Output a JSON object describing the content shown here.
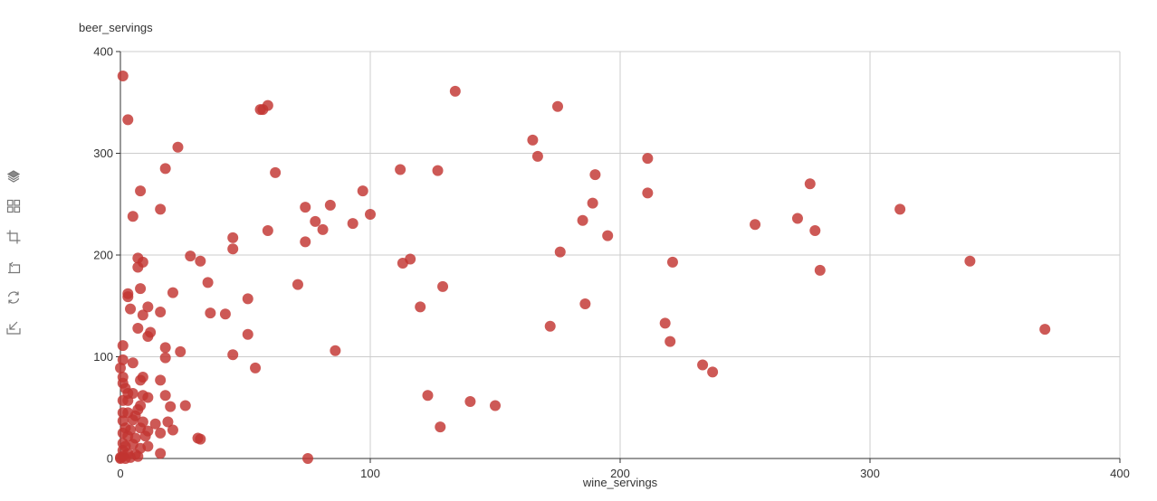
{
  "toolbox": {
    "items": [
      {
        "name": "stack-icon"
      },
      {
        "name": "grid-icon"
      },
      {
        "name": "crop-icon"
      },
      {
        "name": "undo-crop-icon"
      },
      {
        "name": "refresh-icon"
      },
      {
        "name": "download-icon"
      }
    ]
  },
  "chart_data": {
    "type": "scatter",
    "xlabel": "wine_servings",
    "ylabel": "beer_servings",
    "xlim": [
      0,
      400
    ],
    "ylim": [
      0,
      400
    ],
    "xticks": [
      0,
      100,
      200,
      300,
      400
    ],
    "yticks": [
      0,
      100,
      200,
      300,
      400
    ],
    "grid": true,
    "color": "#c23531",
    "points": [
      [
        1,
        376
      ],
      [
        3,
        333
      ],
      [
        134,
        361
      ],
      [
        175,
        346
      ],
      [
        59,
        347
      ],
      [
        57,
        343
      ],
      [
        56,
        343
      ],
      [
        165,
        313
      ],
      [
        167,
        297
      ],
      [
        23,
        306
      ],
      [
        18,
        285
      ],
      [
        62,
        281
      ],
      [
        112,
        284
      ],
      [
        127,
        283
      ],
      [
        211,
        295
      ],
      [
        190,
        279
      ],
      [
        276,
        270
      ],
      [
        211,
        261
      ],
      [
        189,
        251
      ],
      [
        8,
        263
      ],
      [
        97,
        263
      ],
      [
        16,
        245
      ],
      [
        74,
        247
      ],
      [
        84,
        249
      ],
      [
        312,
        245
      ],
      [
        5,
        238
      ],
      [
        78,
        233
      ],
      [
        93,
        231
      ],
      [
        100,
        240
      ],
      [
        185,
        234
      ],
      [
        271,
        236
      ],
      [
        254,
        230
      ],
      [
        81,
        225
      ],
      [
        59,
        224
      ],
      [
        278,
        224
      ],
      [
        195,
        219
      ],
      [
        45,
        217
      ],
      [
        74,
        213
      ],
      [
        45,
        206
      ],
      [
        176,
        203
      ],
      [
        28,
        199
      ],
      [
        32,
        194
      ],
      [
        7,
        197
      ],
      [
        9,
        193
      ],
      [
        7,
        188
      ],
      [
        113,
        192
      ],
      [
        116,
        196
      ],
      [
        221,
        193
      ],
      [
        340,
        194
      ],
      [
        280,
        185
      ],
      [
        35,
        173
      ],
      [
        71,
        171
      ],
      [
        129,
        169
      ],
      [
        8,
        167
      ],
      [
        3,
        162
      ],
      [
        3,
        159
      ],
      [
        21,
        163
      ],
      [
        51,
        157
      ],
      [
        120,
        149
      ],
      [
        186,
        152
      ],
      [
        4,
        147
      ],
      [
        11,
        149
      ],
      [
        16,
        144
      ],
      [
        9,
        141
      ],
      [
        36,
        143
      ],
      [
        42,
        142
      ],
      [
        7,
        128
      ],
      [
        12,
        124
      ],
      [
        11,
        120
      ],
      [
        172,
        130
      ],
      [
        218,
        133
      ],
      [
        370,
        127
      ],
      [
        51,
        122
      ],
      [
        220,
        115
      ],
      [
        1,
        111
      ],
      [
        18,
        109
      ],
      [
        24,
        105
      ],
      [
        45,
        102
      ],
      [
        86,
        106
      ],
      [
        18,
        99
      ],
      [
        1,
        97
      ],
      [
        5,
        94
      ],
      [
        0,
        89
      ],
      [
        54,
        89
      ],
      [
        233,
        92
      ],
      [
        237,
        85
      ],
      [
        1,
        80
      ],
      [
        16,
        77
      ],
      [
        8,
        77
      ],
      [
        9,
        80
      ],
      [
        1,
        74
      ],
      [
        2,
        69
      ],
      [
        3,
        64
      ],
      [
        5,
        64
      ],
      [
        9,
        62
      ],
      [
        11,
        60
      ],
      [
        18,
        62
      ],
      [
        1,
        57
      ],
      [
        3,
        57
      ],
      [
        8,
        52
      ],
      [
        7,
        48
      ],
      [
        26,
        52
      ],
      [
        20,
        51
      ],
      [
        123,
        62
      ],
      [
        140,
        56
      ],
      [
        150,
        52
      ],
      [
        1,
        45
      ],
      [
        3,
        45
      ],
      [
        6,
        42
      ],
      [
        1,
        37
      ],
      [
        5,
        38
      ],
      [
        9,
        36
      ],
      [
        14,
        34
      ],
      [
        19,
        36
      ],
      [
        2,
        30
      ],
      [
        4,
        28
      ],
      [
        8,
        30
      ],
      [
        11,
        27
      ],
      [
        21,
        28
      ],
      [
        128,
        31
      ],
      [
        1,
        25
      ],
      [
        3,
        22
      ],
      [
        6,
        20
      ],
      [
        10,
        22
      ],
      [
        16,
        25
      ],
      [
        31,
        20
      ],
      [
        32,
        19
      ],
      [
        1,
        15
      ],
      [
        2,
        12
      ],
      [
        5,
        14
      ],
      [
        8,
        10
      ],
      [
        11,
        12
      ],
      [
        1,
        8
      ],
      [
        3,
        5
      ],
      [
        6,
        4
      ],
      [
        16,
        5
      ],
      [
        1,
        2
      ],
      [
        0,
        1
      ],
      [
        2,
        0
      ],
      [
        0,
        0
      ],
      [
        4,
        1
      ],
      [
        7,
        2
      ],
      [
        75,
        0
      ]
    ]
  }
}
